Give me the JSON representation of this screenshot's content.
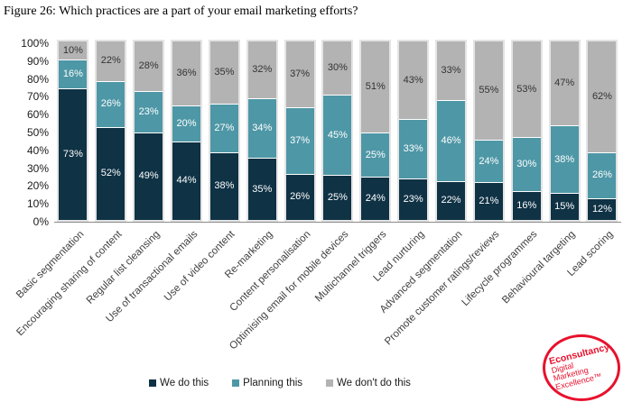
{
  "title": "Figure 26: Which practices are a part of your email marketing efforts?",
  "chart_data": {
    "type": "bar",
    "stacked": true,
    "percent_stacked": true,
    "title": "Figure 26: Which practices are a part of your email marketing efforts?",
    "categories": [
      "Basic segmentation",
      "Encouraging sharing of content",
      "Regular list cleansing",
      "Use of transactional emails",
      "Use of video content",
      "Re-marketing",
      "Content personalisation",
      "Optimising email for mobile devices",
      "Multichannel triggers",
      "Lead nurturing",
      "Advanced segmentation",
      "Promote customer ratings/reviews",
      "Lifecycle programmes",
      "Behavioural targeting",
      "Lead scoring"
    ],
    "series": [
      {
        "name": "We do this",
        "color": "#0f3245",
        "values": [
          73,
          52,
          49,
          44,
          38,
          35,
          26,
          25,
          24,
          23,
          22,
          21,
          16,
          15,
          12
        ]
      },
      {
        "name": "Planning this",
        "color": "#4e97a6",
        "values": [
          16,
          26,
          23,
          20,
          27,
          34,
          37,
          45,
          25,
          33,
          46,
          24,
          30,
          38,
          26
        ]
      },
      {
        "name": "We don't do this",
        "color": "#b3b3b3",
        "values": [
          10,
          22,
          28,
          36,
          35,
          32,
          37,
          30,
          51,
          43,
          33,
          55,
          53,
          47,
          62
        ]
      }
    ],
    "label_suffix": "%",
    "xlabel": "",
    "ylabel": "",
    "ylim": [
      0,
      100
    ],
    "yticks": [
      "100%",
      "90%",
      "80%",
      "70%",
      "60%",
      "50%",
      "40%",
      "30%",
      "20%",
      "10%",
      "0%"
    ],
    "grid": false,
    "legend_position": "bottom"
  },
  "logo": {
    "lines": [
      "Econsultancy",
      "Digital",
      "Marketing",
      "Excellence™"
    ],
    "color": "#e8112d"
  }
}
